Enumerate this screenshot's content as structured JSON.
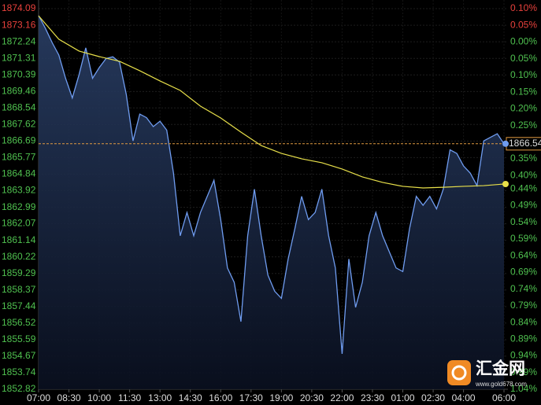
{
  "chart_data": {
    "type": "line",
    "series": [
      {
        "name": "Price",
        "color": "#6f9cf0",
        "x": [
          0,
          20,
          40,
          60,
          80,
          100,
          120,
          140,
          160,
          180,
          200,
          220,
          240,
          260,
          280,
          300,
          320,
          340,
          360,
          380,
          400,
          420,
          440,
          460,
          480,
          500,
          520,
          540,
          560,
          580,
          600,
          620,
          640,
          660,
          680,
          700,
          720,
          740,
          760,
          780,
          800,
          820,
          840,
          860,
          880,
          900,
          920,
          940,
          960,
          980,
          1000,
          1020,
          1040,
          1060,
          1080,
          1100,
          1120,
          1140,
          1160,
          1180,
          1200,
          1220,
          1240,
          1260,
          1280,
          1300,
          1320,
          1340,
          1360,
          1380
        ],
        "values": [
          1873.7,
          1873.0,
          1872.2,
          1871.5,
          1870.2,
          1869.1,
          1870.4,
          1871.9,
          1870.2,
          1870.8,
          1871.3,
          1871.4,
          1871.1,
          1869.3,
          1866.7,
          1868.2,
          1868.0,
          1867.5,
          1867.8,
          1867.3,
          1864.9,
          1861.4,
          1862.7,
          1861.4,
          1862.7,
          1863.6,
          1864.5,
          1862.3,
          1859.6,
          1858.8,
          1856.6,
          1861.4,
          1864.0,
          1861.4,
          1859.2,
          1858.3,
          1857.9,
          1860.1,
          1861.8,
          1863.6,
          1862.3,
          1862.7,
          1864.0,
          1861.4,
          1859.6,
          1854.8,
          1860.1,
          1857.4,
          1858.8,
          1861.4,
          1862.7,
          1861.4,
          1860.5,
          1859.6,
          1859.4,
          1861.8,
          1863.6,
          1863.1,
          1863.6,
          1862.9,
          1864.0,
          1866.2,
          1866.0,
          1865.3,
          1864.9,
          1864.2,
          1866.7,
          1866.9,
          1867.1,
          1866.54
        ]
      },
      {
        "name": "Average",
        "color": "#e8e04a",
        "x": [
          0,
          60,
          120,
          180,
          240,
          300,
          360,
          420,
          480,
          540,
          600,
          660,
          720,
          780,
          840,
          900,
          960,
          1020,
          1080,
          1140,
          1200,
          1260,
          1320,
          1380
        ],
        "values": [
          1873.69,
          1872.38,
          1871.72,
          1871.41,
          1871.15,
          1870.62,
          1870.05,
          1869.52,
          1868.64,
          1867.98,
          1867.19,
          1866.44,
          1866.0,
          1865.7,
          1865.48,
          1865.13,
          1864.69,
          1864.38,
          1864.16,
          1864.07,
          1864.11,
          1864.16,
          1864.2,
          1864.29
        ]
      }
    ],
    "xlim": [
      0,
      1380
    ],
    "xticks": [
      {
        "value": 0,
        "label": "07:00"
      },
      {
        "value": 90,
        "label": "08:30"
      },
      {
        "value": 180,
        "label": "10:00"
      },
      {
        "value": 270,
        "label": "11:30"
      },
      {
        "value": 360,
        "label": "13:00"
      },
      {
        "value": 450,
        "label": "14:30"
      },
      {
        "value": 540,
        "label": "16:00"
      },
      {
        "value": 630,
        "label": "17:30"
      },
      {
        "value": 720,
        "label": "19:00"
      },
      {
        "value": 810,
        "label": "20:30"
      },
      {
        "value": 900,
        "label": "22:00"
      },
      {
        "value": 990,
        "label": "23:30"
      },
      {
        "value": 1080,
        "label": "01:00"
      },
      {
        "value": 1170,
        "label": "02:30"
      },
      {
        "value": 1260,
        "label": "04:00"
      },
      {
        "value": 1380,
        "label": "06:00"
      }
    ],
    "ylim": [
      1852.82,
      1874.09
    ],
    "yticks": [
      1874.09,
      1873.16,
      1872.24,
      1871.31,
      1870.39,
      1869.46,
      1868.54,
      1867.62,
      1866.69,
      1865.77,
      1864.84,
      1863.92,
      1862.99,
      1862.07,
      1861.14,
      1860.22,
      1859.29,
      1858.37,
      1857.44,
      1856.52,
      1855.59,
      1854.67,
      1853.74,
      1852.82
    ],
    "y2lim": [
      -1.04,
      0.1
    ],
    "y2ticks": [
      {
        "value": 0.1,
        "label": "0.10%"
      },
      {
        "value": 0.05,
        "label": "0.05%"
      },
      {
        "value": 0,
        "label": "0.00%"
      },
      {
        "value": -0.05,
        "label": "0.05%"
      },
      {
        "value": -0.1,
        "label": "0.10%"
      },
      {
        "value": -0.15,
        "label": "0.15%"
      },
      {
        "value": -0.2,
        "label": "0.20%"
      },
      {
        "value": -0.25,
        "label": "0.25%"
      },
      {
        "value": -0.3,
        "label": "0.30%"
      },
      {
        "value": -0.35,
        "label": "0.35%"
      },
      {
        "value": -0.4,
        "label": "0.40%"
      },
      {
        "value": -0.44,
        "label": "0.44%"
      },
      {
        "value": -0.49,
        "label": "0.49%"
      },
      {
        "value": -0.54,
        "label": "0.54%"
      },
      {
        "value": -0.59,
        "label": "0.59%"
      },
      {
        "value": -0.64,
        "label": "0.64%"
      },
      {
        "value": -0.69,
        "label": "0.69%"
      },
      {
        "value": -0.74,
        "label": "0.74%"
      },
      {
        "value": -0.79,
        "label": "0.79%"
      },
      {
        "value": -0.84,
        "label": "0.84%"
      },
      {
        "value": -0.89,
        "label": "0.89%"
      },
      {
        "value": -0.94,
        "label": "0.94%"
      },
      {
        "value": -0.99,
        "label": "0.99%"
      },
      {
        "value": -1.04,
        "label": "1.04%"
      }
    ],
    "up_color": "#e8413c",
    "down_color": "#4fc04f",
    "grid": true
  },
  "watermark": {
    "name": "汇金网",
    "url": "www.gold678.com"
  }
}
